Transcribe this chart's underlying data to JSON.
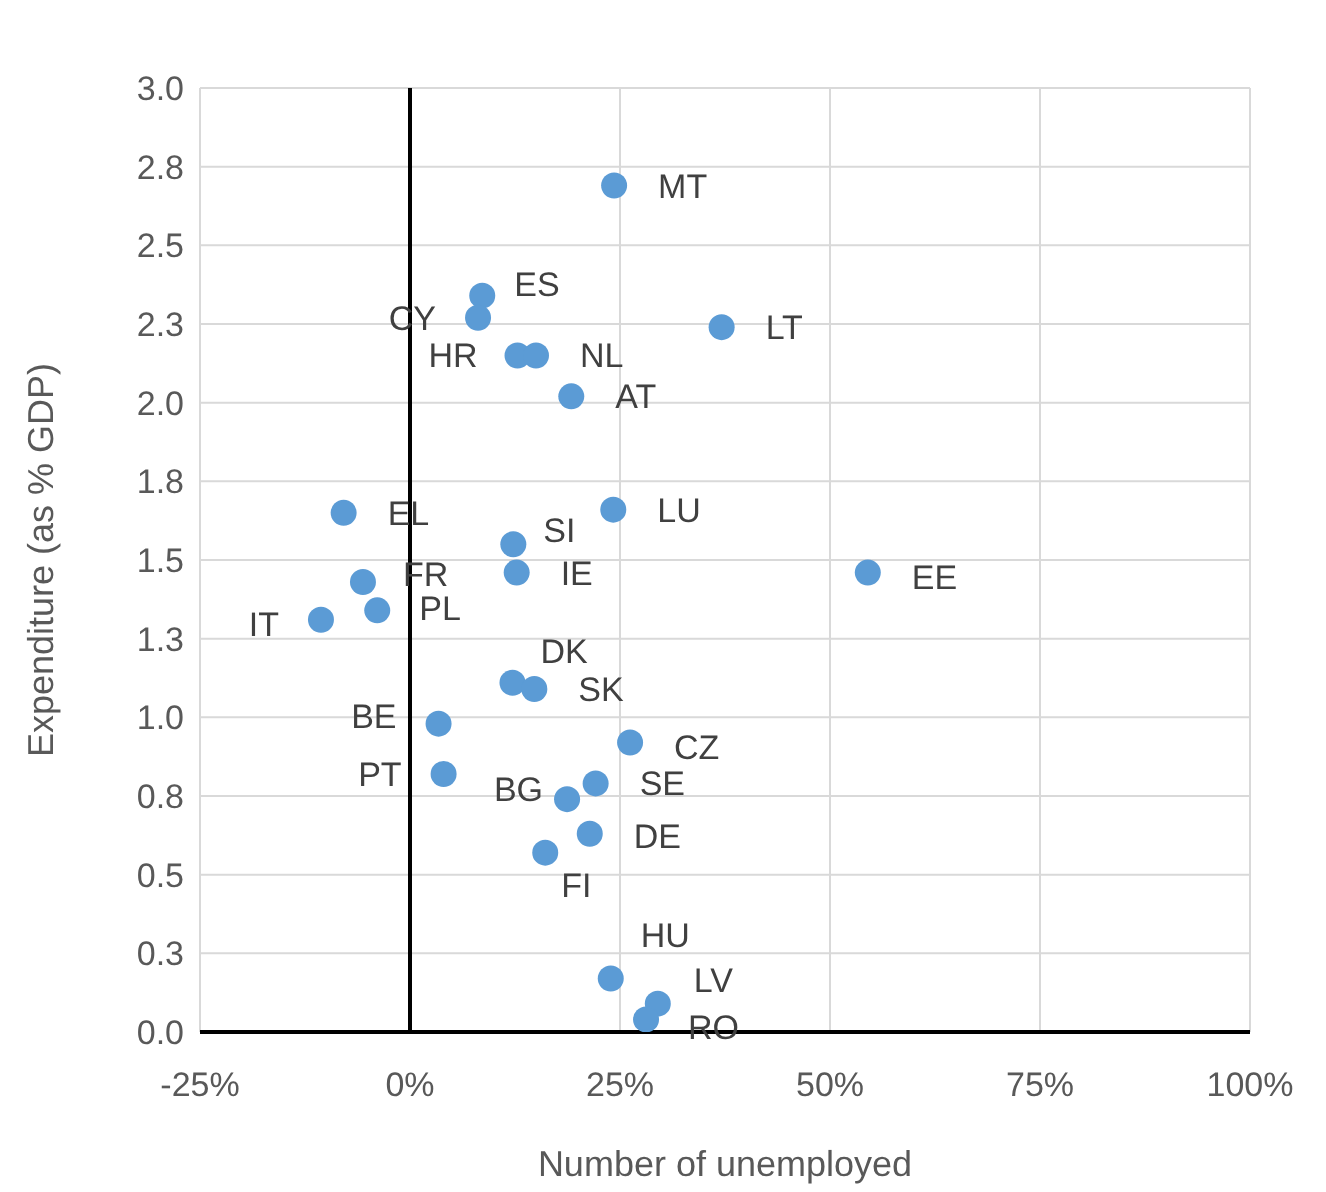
{
  "chart_data": {
    "type": "scatter",
    "xlabel": "Number of unemployed",
    "ylabel": "Expenditure (as % GDP)",
    "series": [
      {
        "color": "#5b9bd5",
        "x": [
          24.3,
          8.6,
          8.1,
          12.8,
          15.0,
          19.2,
          37.1,
          -7.9,
          24.2,
          12.3,
          12.7,
          -5.6,
          -3.9,
          -10.6,
          54.5,
          12.2,
          14.8,
          3.4,
          26.2,
          4.0,
          22.1,
          18.7,
          21.4,
          16.1,
          23.9,
          29.5,
          28.1
        ],
        "values": [
          2.69,
          2.34,
          2.27,
          2.15,
          2.15,
          2.02,
          2.24,
          1.65,
          1.66,
          1.55,
          1.46,
          1.43,
          1.34,
          1.31,
          1.46,
          1.11,
          1.09,
          0.98,
          0.92,
          0.82,
          0.79,
          0.74,
          0.63,
          0.57,
          0.17,
          0.09,
          0.04
        ]
      }
    ],
    "annotations": [
      {
        "text": "MT",
        "x": 24.3,
        "y": 2.69
      },
      {
        "text": "ES",
        "x": 8.6,
        "y": 2.34
      },
      {
        "text": "CY",
        "x": 8.1,
        "y": 2.27
      },
      {
        "text": "HR",
        "x": 12.8,
        "y": 2.15
      },
      {
        "text": "NL",
        "x": 15.0,
        "y": 2.15
      },
      {
        "text": "AT",
        "x": 19.2,
        "y": 2.02
      },
      {
        "text": "LT",
        "x": 37.1,
        "y": 2.24
      },
      {
        "text": "EL",
        "x": -7.9,
        "y": 1.65
      },
      {
        "text": "LU",
        "x": 24.2,
        "y": 1.66
      },
      {
        "text": "SI",
        "x": 12.3,
        "y": 1.55
      },
      {
        "text": "IE",
        "x": 12.7,
        "y": 1.46
      },
      {
        "text": "FR",
        "x": -5.6,
        "y": 1.43
      },
      {
        "text": "PL",
        "x": -3.9,
        "y": 1.34
      },
      {
        "text": "IT",
        "x": -10.6,
        "y": 1.31
      },
      {
        "text": "EE",
        "x": 54.5,
        "y": 1.46
      },
      {
        "text": "DK",
        "x": 12.2,
        "y": 1.11
      },
      {
        "text": "SK",
        "x": 14.8,
        "y": 1.09
      },
      {
        "text": "BE",
        "x": 3.4,
        "y": 0.98
      },
      {
        "text": "CZ",
        "x": 26.2,
        "y": 0.92
      },
      {
        "text": "PT",
        "x": 4.0,
        "y": 0.82
      },
      {
        "text": "SE",
        "x": 22.1,
        "y": 0.79
      },
      {
        "text": "BG",
        "x": 18.7,
        "y": 0.74
      },
      {
        "text": "DE",
        "x": 21.4,
        "y": 0.63
      },
      {
        "text": "FI",
        "x": 16.1,
        "y": 0.57
      },
      {
        "text": "HU",
        "x": 23.9,
        "y": 0.17
      },
      {
        "text": "LV",
        "x": 29.5,
        "y": 0.09
      },
      {
        "text": "RO",
        "x": 28.1,
        "y": 0.04
      }
    ],
    "xlim": [
      -25,
      100
    ],
    "xticks": [
      {
        "value": -25,
        "label": "-25%"
      },
      {
        "value": 0,
        "label": "0%"
      },
      {
        "value": 25,
        "label": "25%"
      },
      {
        "value": 50,
        "label": "50%"
      },
      {
        "value": 75,
        "label": "75%"
      },
      {
        "value": 100,
        "label": "100%"
      }
    ],
    "ylim": [
      0,
      3
    ],
    "yticks": [
      {
        "value": 0,
        "label": "0.0"
      },
      {
        "value": 0.25,
        "label": "0.3"
      },
      {
        "value": 0.5,
        "label": "0.5"
      },
      {
        "value": 0.75,
        "label": "0.8"
      },
      {
        "value": 1,
        "label": "1.0"
      },
      {
        "value": 1.25,
        "label": "1.3"
      },
      {
        "value": 1.5,
        "label": "1.5"
      },
      {
        "value": 1.75,
        "label": "1.8"
      },
      {
        "value": 2,
        "label": "2.0"
      },
      {
        "value": 2.25,
        "label": "2.3"
      },
      {
        "value": 2.5,
        "label": "2.5"
      },
      {
        "value": 2.75,
        "label": "2.8"
      },
      {
        "value": 3,
        "label": "3.0"
      }
    ],
    "ref_lines": [
      {
        "axis": "x",
        "value": 0,
        "color": "#000000"
      }
    ],
    "grid": true,
    "marker": "circle",
    "legend": false
  }
}
